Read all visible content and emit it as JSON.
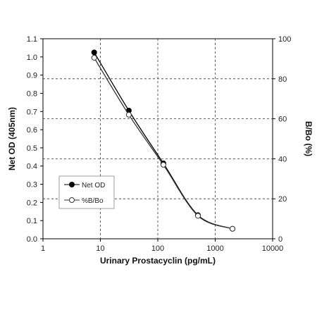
{
  "chart_data": {
    "type": "line",
    "xlabel": "Urinary Prostacyclin (pg/mL)",
    "ylabel": "Net OD (405nm)",
    "y2label": "B/Bo (%)",
    "x_scale": "log",
    "xlim": [
      1,
      10000
    ],
    "ylim": [
      0,
      1.1
    ],
    "y2lim": [
      0,
      100
    ],
    "grid": "major (dashed)",
    "legend_position": "lower-left",
    "x_ticks": [
      "1",
      "10",
      "100",
      "1000",
      "10000"
    ],
    "y_ticks": [
      "0.0",
      "0.1",
      "0.2",
      "0.3",
      "0.4",
      "0.5",
      "0.6",
      "0.7",
      "0.8",
      "0.9",
      "1.0",
      "1.1"
    ],
    "y2_ticks": [
      "0",
      "20",
      "40",
      "60",
      "80",
      "100"
    ],
    "series": [
      {
        "name": "Net OD",
        "axis": "left",
        "marker": "filled-circle",
        "color": "#000000",
        "x": [
          7.8,
          31.3,
          125,
          500,
          2000
        ],
        "y": [
          1.025,
          0.705,
          0.415,
          0.13,
          0.055
        ]
      },
      {
        "name": "%B/Bo",
        "axis": "right",
        "marker": "open-circle",
        "color": "#333333",
        "x": [
          7.8,
          31.3,
          125,
          500,
          2000
        ],
        "y": [
          90.5,
          62.0,
          37.0,
          11.5,
          5.0
        ]
      }
    ]
  }
}
